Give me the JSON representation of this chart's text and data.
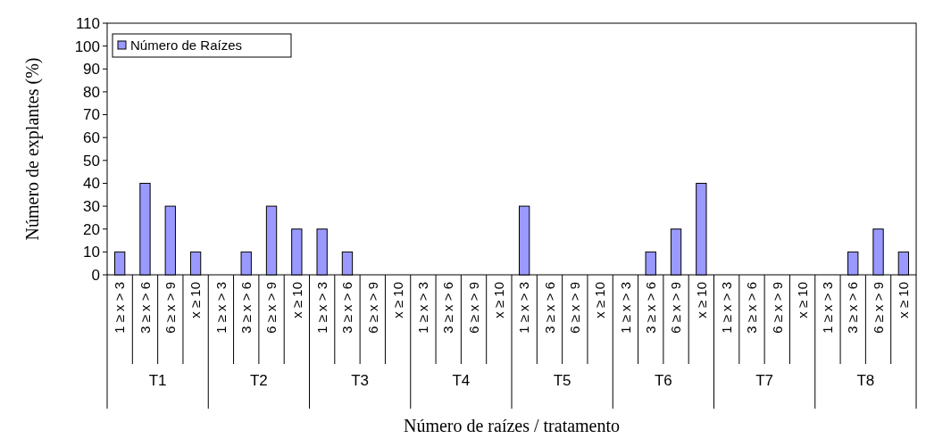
{
  "chart_data": {
    "type": "bar",
    "xlabel": "Número de raízes / tratamento",
    "ylabel": "Número de explantes (%)",
    "categories": [
      "1 ≥ x > 3",
      "3 ≥ x > 6",
      "6 ≥ x > 9",
      "x ≥ 10",
      "1 ≥ x > 3",
      "3 ≥ x > 6",
      "6 ≥ x > 9",
      "x ≥ 10",
      "1 ≥ x > 3",
      "3 ≥ x > 6",
      "6 ≥ x > 9",
      "x ≥ 10",
      "1 ≥ x > 3",
      "3 ≥ x > 6",
      "6 ≥ x > 9",
      "x ≥ 10",
      "1 ≥ x > 3",
      "3 ≥ x > 6",
      "6 ≥ x > 9",
      "x ≥ 10",
      "1 ≥ x > 3",
      "3 ≥ x > 6",
      "6 ≥ x > 9",
      "x ≥ 10",
      "1 ≥ x > 3",
      "3 ≥ x > 6",
      "6 ≥ x > 9",
      "x ≥ 10",
      "1 ≥ x > 3",
      "3 ≥ x > 6",
      "6 ≥ x > 9",
      "x ≥ 10"
    ],
    "series": [
      {
        "name": "Número de Raízes",
        "color": "#9999ff",
        "values": [
          10,
          40,
          30,
          10,
          0,
          10,
          30,
          20,
          20,
          10,
          0,
          0,
          0,
          0,
          0,
          0,
          30,
          0,
          0,
          0,
          0,
          10,
          20,
          40,
          0,
          0,
          0,
          0,
          0,
          10,
          20,
          10
        ]
      }
    ],
    "annotations": [
      "T1",
      "T2",
      "T3",
      "T4",
      "T5",
      "T6",
      "T7",
      "T8"
    ],
    "ylim": [
      0,
      110
    ],
    "yticks": [
      0,
      10,
      20,
      30,
      40,
      50,
      60,
      70,
      80,
      90,
      100,
      110
    ],
    "legend": "top left"
  }
}
